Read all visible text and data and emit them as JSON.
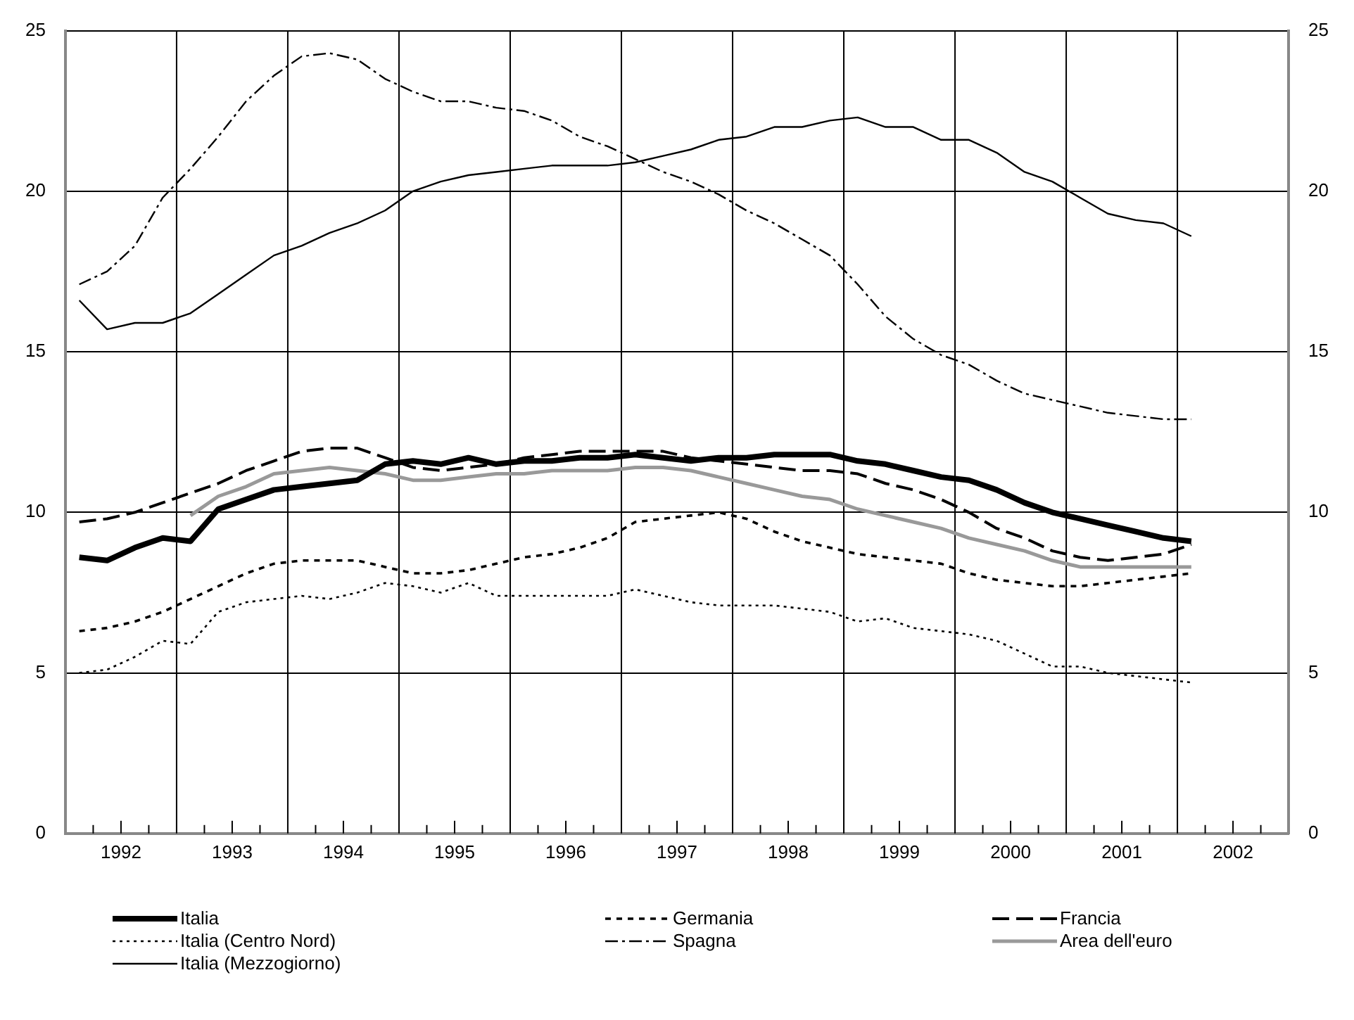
{
  "chart_data": {
    "type": "line",
    "x": [
      1992.125,
      1992.375,
      1992.625,
      1992.875,
      1993.125,
      1993.375,
      1993.625,
      1993.875,
      1994.125,
      1994.375,
      1994.625,
      1994.875,
      1995.125,
      1995.375,
      1995.625,
      1995.875,
      1996.125,
      1996.375,
      1996.625,
      1996.875,
      1997.125,
      1997.375,
      1997.625,
      1997.875,
      1998.125,
      1998.375,
      1998.625,
      1998.875,
      1999.125,
      1999.375,
      1999.625,
      1999.875,
      2000.125,
      2000.375,
      2000.625,
      2000.875,
      2001.125,
      2001.375,
      2001.625,
      2001.875,
      2002.125
    ],
    "series": [
      {
        "name": "Italia",
        "color": "#000000",
        "line_style": "solid",
        "values": [
          8.6,
          8.5,
          8.9,
          9.2,
          9.1,
          10.1,
          10.4,
          10.7,
          10.8,
          10.9,
          11.0,
          11.5,
          11.6,
          11.5,
          11.7,
          11.5,
          11.6,
          11.6,
          11.7,
          11.7,
          11.8,
          11.7,
          11.6,
          11.7,
          11.7,
          11.8,
          11.8,
          11.8,
          11.6,
          11.5,
          11.3,
          11.1,
          11.0,
          10.7,
          10.3,
          10.0,
          9.8,
          9.6,
          9.4,
          9.2,
          9.1
        ]
      },
      {
        "name": "Germania",
        "color": "#000000",
        "line_style": "dashed",
        "values": [
          6.3,
          6.4,
          6.6,
          6.9,
          7.3,
          7.7,
          8.1,
          8.4,
          8.5,
          8.5,
          8.5,
          8.3,
          8.1,
          8.1,
          8.2,
          8.4,
          8.6,
          8.7,
          8.9,
          9.2,
          9.7,
          9.8,
          9.9,
          10.0,
          9.8,
          9.4,
          9.1,
          8.9,
          8.7,
          8.6,
          8.5,
          8.4,
          8.1,
          7.9,
          7.8,
          7.7,
          7.7,
          7.8,
          7.9,
          8.0,
          8.1
        ]
      },
      {
        "name": "Francia",
        "color": "#000000",
        "line_style": "longdash",
        "values": [
          9.7,
          9.8,
          10.0,
          10.3,
          10.6,
          10.9,
          11.3,
          11.6,
          11.9,
          12.0,
          12.0,
          11.7,
          11.4,
          11.3,
          11.4,
          11.5,
          11.7,
          11.8,
          11.9,
          11.9,
          11.9,
          11.9,
          11.7,
          11.6,
          11.5,
          11.4,
          11.3,
          11.3,
          11.2,
          10.9,
          10.7,
          10.4,
          10.0,
          9.5,
          9.2,
          8.8,
          8.6,
          8.5,
          8.6,
          8.7,
          9.0
        ]
      },
      {
        "name": "Italia (Centro Nord)",
        "color": "#000000",
        "line_style": "dotted",
        "values": [
          5.0,
          5.1,
          5.5,
          6.0,
          5.9,
          6.9,
          7.2,
          7.3,
          7.4,
          7.3,
          7.5,
          7.8,
          7.7,
          7.5,
          7.8,
          7.4,
          7.4,
          7.4,
          7.4,
          7.4,
          7.6,
          7.4,
          7.2,
          7.1,
          7.1,
          7.1,
          7.0,
          6.9,
          6.6,
          6.7,
          6.4,
          6.3,
          6.2,
          6.0,
          5.6,
          5.2,
          5.2,
          5.0,
          4.9,
          4.8,
          4.7
        ]
      },
      {
        "name": "Spagna",
        "color": "#000000",
        "line_style": "dashdot",
        "values": [
          17.1,
          17.5,
          18.3,
          19.8,
          20.7,
          21.7,
          22.8,
          23.6,
          24.2,
          24.3,
          24.1,
          23.5,
          23.1,
          22.8,
          22.8,
          22.6,
          22.5,
          22.2,
          21.7,
          21.4,
          21.0,
          20.6,
          20.3,
          19.9,
          19.4,
          19.0,
          18.5,
          18.0,
          17.1,
          16.1,
          15.4,
          14.9,
          14.6,
          14.1,
          13.7,
          13.5,
          13.3,
          13.1,
          13.0,
          12.9,
          12.9
        ]
      },
      {
        "name": "Area dell'euro",
        "color": "#999999",
        "line_style": "solid",
        "values": [
          null,
          null,
          null,
          null,
          9.9,
          10.5,
          10.8,
          11.2,
          11.3,
          11.4,
          11.3,
          11.2,
          11.0,
          11.0,
          11.1,
          11.2,
          11.2,
          11.3,
          11.3,
          11.3,
          11.4,
          11.4,
          11.3,
          11.1,
          10.9,
          10.7,
          10.5,
          10.4,
          10.1,
          9.9,
          9.7,
          9.5,
          9.2,
          9.0,
          8.8,
          8.5,
          8.3,
          8.3,
          8.3,
          8.3,
          8.3
        ]
      },
      {
        "name": "Italia (Mezzogiorno)",
        "color": "#000000",
        "line_style": "solid",
        "values": [
          16.6,
          15.7,
          15.9,
          15.9,
          16.2,
          16.8,
          17.4,
          18.0,
          18.3,
          18.7,
          19.0,
          19.4,
          20.0,
          20.3,
          20.5,
          20.6,
          20.7,
          20.8,
          20.8,
          20.8,
          20.9,
          21.1,
          21.3,
          21.6,
          21.7,
          22.0,
          22.0,
          22.2,
          22.3,
          22.0,
          22.0,
          21.6,
          21.6,
          21.2,
          20.6,
          20.3,
          19.8,
          19.3,
          19.1,
          19.0,
          18.6
        ]
      }
    ],
    "xlim": [
      1992,
      2003
    ],
    "xticks": [
      {
        "value": 1992.25,
        "label": null
      },
      {
        "value": 1992.5,
        "label": "1992"
      },
      {
        "value": 1992.75,
        "label": null
      },
      {
        "value": 1993.25,
        "label": null
      },
      {
        "value": 1993.5,
        "label": "1993"
      },
      {
        "value": 1993.75,
        "label": null
      },
      {
        "value": 1994.25,
        "label": null
      },
      {
        "value": 1994.5,
        "label": "1994"
      },
      {
        "value": 1994.75,
        "label": null
      },
      {
        "value": 1995.25,
        "label": null
      },
      {
        "value": 1995.5,
        "label": "1995"
      },
      {
        "value": 1995.75,
        "label": null
      },
      {
        "value": 1996.25,
        "label": null
      },
      {
        "value": 1996.5,
        "label": "1996"
      },
      {
        "value": 1996.75,
        "label": null
      },
      {
        "value": 1997.25,
        "label": null
      },
      {
        "value": 1997.5,
        "label": "1997"
      },
      {
        "value": 1997.75,
        "label": null
      },
      {
        "value": 1998.25,
        "label": null
      },
      {
        "value": 1998.5,
        "label": "1998"
      },
      {
        "value": 1998.75,
        "label": null
      },
      {
        "value": 1999.25,
        "label": null
      },
      {
        "value": 1999.5,
        "label": "1999"
      },
      {
        "value": 1999.75,
        "label": null
      },
      {
        "value": 2000.25,
        "label": null
      },
      {
        "value": 2000.5,
        "label": "2000"
      },
      {
        "value": 2000.75,
        "label": null
      },
      {
        "value": 2001.25,
        "label": null
      },
      {
        "value": 2001.5,
        "label": "2001"
      },
      {
        "value": 2001.75,
        "label": null
      },
      {
        "value": 2002.25,
        "label": null
      },
      {
        "value": 2002.5,
        "label": "2002"
      },
      {
        "value": 2002.75,
        "label": null
      }
    ],
    "ylim": [
      0,
      25
    ],
    "yticks": [
      0,
      5,
      10,
      15,
      20,
      25
    ],
    "y2lim": [
      0,
      25
    ],
    "y2ticks": [
      0,
      5,
      10,
      15,
      20,
      25
    ],
    "ref_lines": [
      {
        "axis": "x",
        "value": 1993,
        "color": "#000000"
      },
      {
        "axis": "x",
        "value": 1994,
        "color": "#000000"
      },
      {
        "axis": "x",
        "value": 1995,
        "color": "#000000"
      },
      {
        "axis": "x",
        "value": 1996,
        "color": "#000000"
      },
      {
        "axis": "x",
        "value": 1997,
        "color": "#000000"
      },
      {
        "axis": "x",
        "value": 1998,
        "color": "#000000"
      },
      {
        "axis": "x",
        "value": 1999,
        "color": "#000000"
      },
      {
        "axis": "x",
        "value": 2000,
        "color": "#000000"
      },
      {
        "axis": "x",
        "value": 2001,
        "color": "#000000"
      },
      {
        "axis": "x",
        "value": 2002,
        "color": "#000000"
      }
    ],
    "grid": "y",
    "legend": "bottom",
    "marker": "none"
  }
}
